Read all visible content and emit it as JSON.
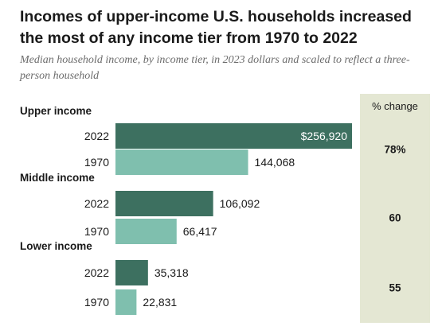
{
  "chart_data": {
    "type": "bar",
    "title": "Incomes of upper-income U.S. households increased the most of any income tier from 1970 to 2022",
    "subtitle": "Median household income, by income tier, in 2023 dollars and scaled to reflect a three-person household",
    "orientation": "horizontal",
    "change_header": "% change",
    "colors": {
      "2022": "#3d7060",
      "1970": "#7fbfae",
      "change_panel": "#e4e7d3"
    },
    "groups": [
      {
        "name": "Upper income",
        "bars": [
          {
            "year": "2022",
            "value": 256920,
            "label": "$256,920"
          },
          {
            "year": "1970",
            "value": 144068,
            "label": "144,068"
          }
        ],
        "change": "78%"
      },
      {
        "name": "Middle income",
        "bars": [
          {
            "year": "2022",
            "value": 106092,
            "label": "106,092"
          },
          {
            "year": "1970",
            "value": 66417,
            "label": "66,417"
          }
        ],
        "change": "60"
      },
      {
        "name": "Lower income",
        "bars": [
          {
            "year": "2022",
            "value": 35318,
            "label": "35,318"
          },
          {
            "year": "1970",
            "value": 22831,
            "label": "22,831"
          }
        ],
        "change": "55"
      }
    ]
  }
}
